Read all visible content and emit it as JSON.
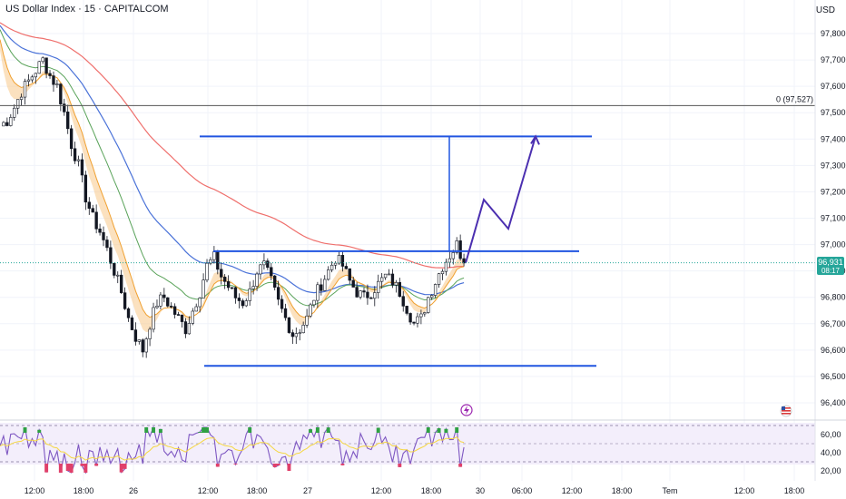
{
  "header": {
    "title": "US Dollar Index · 15 · CAPITALCOM",
    "currency": "USD"
  },
  "chart_data": {
    "type": "line",
    "title": "US Dollar Index · 15 · CAPITALCOM",
    "ylim": [
      96.35,
      97.85
    ],
    "yticks": [
      "97,800",
      "97,700",
      "97,600",
      "97,500",
      "97,400",
      "97,300",
      "97,200",
      "97,100",
      "97,000",
      "96,900",
      "96,800",
      "96,700",
      "96,600",
      "96,500",
      "96,400"
    ],
    "ytick_values": [
      97.8,
      97.7,
      97.6,
      97.5,
      97.4,
      97.3,
      97.2,
      97.1,
      97.0,
      96.9,
      96.8,
      96.7,
      96.6,
      96.5,
      96.4
    ],
    "xticks": [
      "12:00",
      "18:00",
      "26",
      "12:00",
      "18:00",
      "27",
      "12:00",
      "18:00",
      "30",
      "06:00",
      "12:00",
      "18:00",
      "Tem",
      "12:00",
      "18:00"
    ],
    "price_label": {
      "value": "96,931",
      "countdown": "08:17",
      "y": 96.931
    },
    "horizontal_line": {
      "label": "0 (97,527)",
      "y": 97.527
    },
    "levels": [
      {
        "name": "target",
        "y": 97.41
      },
      {
        "name": "resistance",
        "y": 96.975
      },
      {
        "name": "support",
        "y": 96.54
      }
    ],
    "close_series": [
      97.45,
      97.47,
      97.52,
      97.58,
      97.62,
      97.66,
      97.7,
      97.64,
      97.6,
      97.5,
      97.38,
      97.3,
      97.18,
      97.1,
      97.05,
      96.98,
      96.9,
      96.82,
      96.72,
      96.65,
      96.6,
      96.7,
      96.78,
      96.8,
      96.76,
      96.72,
      96.68,
      96.75,
      96.82,
      96.92,
      96.95,
      96.88,
      96.84,
      96.8,
      96.78,
      96.82,
      96.9,
      96.92,
      96.86,
      96.78,
      96.72,
      96.66,
      96.68,
      96.72,
      96.8,
      96.85,
      96.9,
      96.95,
      96.92,
      96.86,
      96.82,
      96.8,
      96.82,
      96.85,
      96.88,
      96.86,
      96.82,
      96.76,
      96.7,
      96.72,
      96.8,
      96.86,
      96.92,
      96.96,
      97.0,
      96.93
    ],
    "rsi": {
      "yticks": [
        "60,00",
        "40,00",
        "20,00"
      ],
      "ytick_values": [
        60,
        40,
        20
      ],
      "ylim": [
        15,
        72
      ],
      "upper": 70,
      "lower": 30
    }
  }
}
